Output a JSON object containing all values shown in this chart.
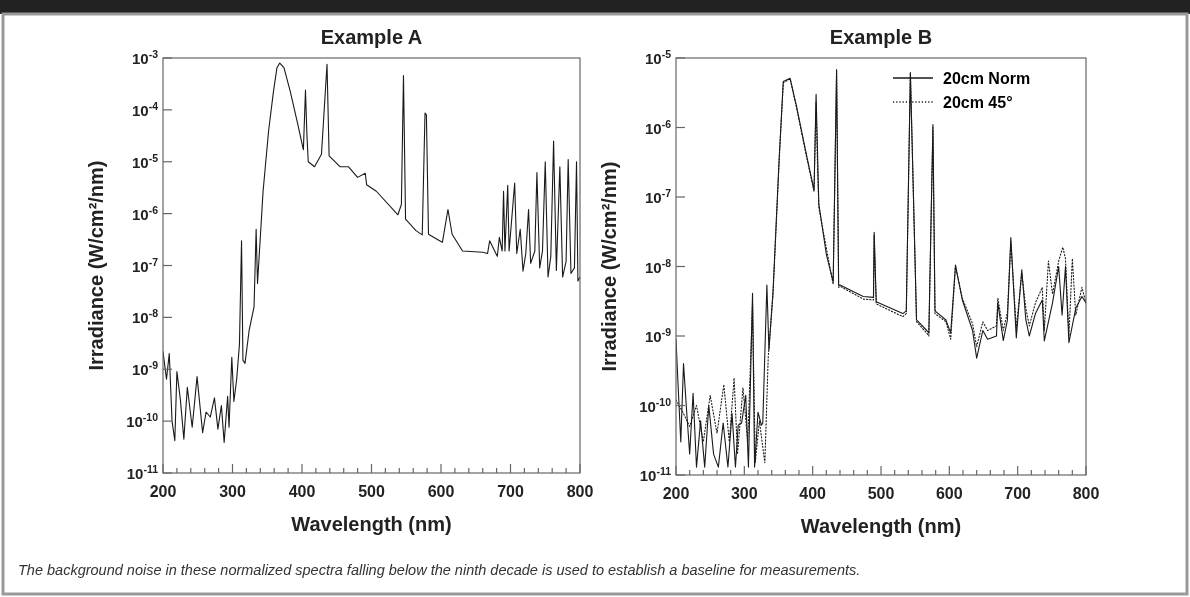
{
  "chart_data": [
    {
      "type": "line",
      "title": "Example A",
      "xlabel": "Wavelength (nm)",
      "ylabel": "Irradiance (W/cm²/nm)",
      "log": "y",
      "xlim": [
        200,
        800
      ],
      "xticks": [
        200,
        {
          "value": 220,
          "label": null
        },
        {
          "value": 240,
          "label": null
        },
        {
          "value": 260,
          "label": null
        },
        {
          "value": 280,
          "label": null
        },
        300,
        {
          "value": 320,
          "label": null
        },
        {
          "value": 340,
          "label": null
        },
        {
          "value": 360,
          "label": null
        },
        {
          "value": 380,
          "label": null
        },
        400,
        {
          "value": 420,
          "label": null
        },
        {
          "value": 440,
          "label": null
        },
        {
          "value": 460,
          "label": null
        },
        {
          "value": 480,
          "label": null
        },
        500,
        {
          "value": 520,
          "label": null
        },
        {
          "value": 540,
          "label": null
        },
        {
          "value": 560,
          "label": null
        },
        {
          "value": 580,
          "label": null
        },
        600,
        {
          "value": 620,
          "label": null
        },
        {
          "value": 640,
          "label": null
        },
        {
          "value": 660,
          "label": null
        },
        {
          "value": 680,
          "label": null
        },
        700,
        {
          "value": 720,
          "label": null
        },
        {
          "value": 740,
          "label": null
        },
        {
          "value": 760,
          "label": null
        },
        {
          "value": 780,
          "label": null
        },
        800
      ],
      "ylim": [
        1e-11,
        0.001
      ],
      "yticks": [
        {
          "value": 1e-11,
          "label": "10$^{-11}$"
        },
        {
          "value": 1e-10,
          "label": "10$^{-10}$"
        },
        {
          "value": 1e-09,
          "label": "10$^{-9}$"
        },
        {
          "value": 1e-08,
          "label": "10$^{-8}$"
        },
        {
          "value": 1e-07,
          "label": "10$^{-7}$"
        },
        {
          "value": 1e-06,
          "label": "10$^{-6}$"
        },
        {
          "value": 1e-05,
          "label": "10$^{-5}$"
        },
        {
          "value": 0.0001,
          "label": "10$^{-4}$"
        },
        {
          "value": 0.001,
          "label": "10$^{-3}$"
        }
      ],
      "line_style": "solid",
      "annotations": [
        "The background noise in these normalized spectra falling below the ninth decade is used to establish a baseline for measurements."
      ],
      "series": [
        {
          "color": "#1a1a1a",
          "x": [
            200,
            205,
            209,
            213,
            217,
            220,
            225,
            230,
            235,
            242,
            249,
            257,
            262,
            268,
            274,
            279,
            284,
            288,
            293,
            295,
            299,
            302,
            306,
            310,
            313,
            315,
            318,
            324,
            331,
            334,
            336,
            344,
            352,
            359,
            364,
            368,
            374,
            383,
            393,
            402,
            405,
            407,
            409,
            418,
            428,
            436,
            439,
            455,
            467,
            480,
            491,
            493,
            507,
            538,
            543,
            546,
            549,
            564,
            573,
            577,
            579,
            582,
            598,
            602,
            610,
            616,
            631,
            660,
            667,
            670,
            681,
            684,
            688,
            690,
            692,
            696,
            698,
            706,
            709,
            714,
            718,
            722,
            726,
            729,
            735,
            738,
            742,
            746,
            750,
            754,
            758,
            762,
            766,
            771,
            775,
            780,
            783,
            787,
            792,
            795,
            797,
            800
          ],
          "values": [
            2.2e-09,
            6.4e-10,
            2e-09,
            1e-10,
            4.2e-11,
            9e-10,
            2.6e-10,
            4.5e-11,
            4.5e-10,
            7.6e-11,
            7.2e-10,
            6e-11,
            1.5e-10,
            1.2e-10,
            2.8e-10,
            7e-11,
            2e-10,
            3.9e-11,
            3e-10,
            7.6e-11,
            1.7e-09,
            2.4e-10,
            6.4e-10,
            3e-09,
            3e-07,
            1.5e-09,
            1.3e-09,
            5.7e-09,
            1.6e-08,
            5e-07,
            4.5e-08,
            2.7e-06,
            4e-05,
            0.00023,
            0.00065,
            0.0008,
            0.00065,
            0.00023,
            6e-05,
            1.7e-05,
            0.00024,
            3.5e-05,
            1e-05,
            8e-06,
            1.4e-05,
            0.00076,
            1.3e-05,
            8e-06,
            8e-06,
            5e-06,
            6e-06,
            3.6e-06,
            2.7e-06,
            9.5e-07,
            1.5e-06,
            0.00046,
            7.8e-07,
            4.7e-07,
            3.9e-07,
            8.7e-05,
            8e-05,
            4e-07,
            3e-07,
            2.8e-07,
            1.2e-06,
            4e-07,
            1.9e-07,
            1.8e-07,
            1.7e-07,
            3e-07,
            1.5e-07,
            3.5e-07,
            1.9e-07,
            2.7e-06,
            1.9e-07,
            3.5e-06,
            1.9e-07,
            3.9e-06,
            1.7e-07,
            5e-07,
            7.8e-08,
            1.7e-07,
            1.2e-06,
            1.1e-07,
            1.9e-07,
            6.2e-06,
            9e-08,
            1.9e-07,
            1e-05,
            6e-08,
            1.5e-07,
            2.5e-05,
            8e-08,
            8e-06,
            6e-08,
            1.2e-07,
            1.1e-05,
            7e-08,
            9e-08,
            1e-05,
            5e-08,
            6e-08
          ]
        }
      ]
    },
    {
      "type": "line",
      "title": "Example B",
      "xlabel": "Wavelength (nm)",
      "ylabel": "Irradiance (W/cm²/nm)",
      "log": "y",
      "legend": "top right",
      "xlim": [
        200,
        800
      ],
      "xticks": [
        200,
        {
          "value": 220,
          "label": null
        },
        {
          "value": 240,
          "label": null
        },
        {
          "value": 260,
          "label": null
        },
        {
          "value": 280,
          "label": null
        },
        300,
        {
          "value": 320,
          "label": null
        },
        {
          "value": 340,
          "label": null
        },
        {
          "value": 360,
          "label": null
        },
        {
          "value": 380,
          "label": null
        },
        400,
        {
          "value": 420,
          "label": null
        },
        {
          "value": 440,
          "label": null
        },
        {
          "value": 460,
          "label": null
        },
        {
          "value": 480,
          "label": null
        },
        500,
        {
          "value": 520,
          "label": null
        },
        {
          "value": 540,
          "label": null
        },
        {
          "value": 560,
          "label": null
        },
        {
          "value": 580,
          "label": null
        },
        600,
        {
          "value": 620,
          "label": null
        },
        {
          "value": 640,
          "label": null
        },
        {
          "value": 660,
          "label": null
        },
        {
          "value": 680,
          "label": null
        },
        700,
        {
          "value": 720,
          "label": null
        },
        {
          "value": 740,
          "label": null
        },
        {
          "value": 760,
          "label": null
        },
        {
          "value": 780,
          "label": null
        },
        800
      ],
      "ylim": [
        1e-11,
        1e-05
      ],
      "yticks": [
        {
          "value": 1e-11,
          "label": "10$^{-11}$"
        },
        {
          "value": 1e-10,
          "label": "10$^{-10}$"
        },
        {
          "value": 1e-09,
          "label": "10$^{-9}$"
        },
        {
          "value": 1e-08,
          "label": "10$^{-8}$"
        },
        {
          "value": 1e-07,
          "label": "10$^{-7}$"
        },
        {
          "value": 1e-06,
          "label": "10$^{-6}$"
        },
        {
          "value": 1e-05,
          "label": "10$^{-5}$"
        }
      ],
      "series": [
        {
          "name": "20cm Norm",
          "color": "#1a1a1a",
          "line_style": "solid",
          "x": [
            200,
            203,
            207,
            211,
            215,
            220,
            225,
            230,
            236,
            242,
            248,
            255,
            262,
            269,
            276,
            282,
            287,
            291,
            296,
            302,
            306,
            312,
            315,
            320,
            325,
            327,
            333,
            336,
            342,
            351,
            357,
            367,
            376,
            391,
            402,
            405,
            407,
            409,
            420,
            430,
            435,
            438,
            440,
            474,
            489,
            490,
            493,
            532,
            537,
            543,
            552,
            567,
            570,
            576,
            579,
            595,
            602,
            609,
            619,
            634,
            640,
            649,
            656,
            669,
            671,
            679,
            685,
            690,
            698,
            706,
            712,
            717,
            726,
            736,
            739,
            751,
            760,
            765,
            770,
            775,
            785,
            794,
            800
          ],
          "values": [
            9e-10,
            2e-10,
            3e-11,
            4e-10,
            1e-10,
            2e-11,
            1.5e-10,
            1.3e-11,
            6e-11,
            1.3e-11,
            1e-10,
            2e-11,
            1.3e-11,
            5.6e-11,
            1.3e-11,
            7.7e-11,
            1.3e-11,
            5.2e-11,
            5.6e-11,
            1.4e-10,
            1.3e-11,
            4.1e-09,
            1.3e-11,
            8e-11,
            5.2e-11,
            5.6e-11,
            5.4e-09,
            6.3e-10,
            4.4e-09,
            3.6e-07,
            4.6e-06,
            5.1e-06,
            2.1e-06,
            4e-07,
            1.26e-07,
            3e-06,
            4.9e-07,
            8e-08,
            1.5e-08,
            6e-09,
            6.8e-06,
            5.4e-09,
            5.4e-09,
            3.7e-09,
            3.6e-09,
            3.1e-08,
            3.1e-09,
            2.1e-09,
            2.3e-09,
            6.2e-06,
            1.7e-09,
            1.2e-09,
            1.1e-09,
            1.1e-06,
            2.3e-09,
            1.7e-09,
            1.1e-09,
            1.05e-08,
            3.3e-09,
            1.2e-09,
            4.8e-10,
            1.2e-09,
            9e-10,
            1e-09,
            3e-09,
            8.6e-10,
            1.7e-09,
            2.6e-08,
            9.4e-10,
            9e-09,
            1.7e-09,
            1e-09,
            2.1e-09,
            3.3e-09,
            8.5e-10,
            3e-09,
            1e-08,
            2e-09,
            1e-08,
            8e-10,
            2.5e-09,
            3.7e-09,
            3e-09
          ]
        },
        {
          "name": "20cm 45°",
          "color": "#1a1a1a",
          "line_style": "dotted",
          "x": [
            200,
            210,
            220,
            230,
            240,
            250,
            260,
            270,
            278,
            285,
            290,
            298,
            305,
            312,
            316,
            322,
            330,
            335,
            342,
            351,
            357,
            367,
            376,
            391,
            402,
            405,
            407,
            409,
            430,
            435,
            438,
            440,
            474,
            489,
            490,
            493,
            532,
            537,
            543,
            552,
            567,
            570,
            576,
            579,
            595,
            602,
            609,
            619,
            634,
            640,
            649,
            656,
            669,
            671,
            679,
            685,
            690,
            698,
            706,
            712,
            717,
            726,
            736,
            739,
            745,
            751,
            760,
            766,
            770,
            775,
            780,
            785,
            794,
            800
          ],
          "values": [
            1.2e-10,
            8e-11,
            5e-11,
            1e-10,
            3e-11,
            1.4e-10,
            4e-11,
            2e-10,
            3e-11,
            2.5e-10,
            2e-11,
            1.8e-10,
            3e-11,
            3e-09,
            1.5e-11,
            6e-11,
            1.5e-11,
            5e-10,
            4e-09,
            3.4e-07,
            4.4e-06,
            5e-06,
            2e-06,
            3.8e-07,
            1.2e-07,
            2.3e-06,
            3e-07,
            7e-08,
            5.5e-09,
            6.5e-06,
            5e-09,
            5.2e-09,
            3.4e-09,
            3.3e-09,
            2.8e-08,
            2.9e-09,
            1.9e-09,
            2.1e-09,
            6e-06,
            1.6e-09,
            1.1e-09,
            1e-09,
            1e-06,
            2.1e-09,
            1.6e-09,
            9e-10,
            1e-08,
            3.5e-09,
            1.5e-09,
            7e-10,
            1.6e-09,
            1.2e-09,
            1.4e-09,
            3.5e-09,
            1.2e-09,
            2.2e-09,
            2.3e-08,
            1.3e-09,
            8e-09,
            2.5e-09,
            1.4e-09,
            3e-09,
            5e-09,
            1.2e-09,
            1.2e-08,
            4e-09,
            1.2e-08,
            1.9e-08,
            1.3e-08,
            1e-09,
            1.3e-08,
            2e-09,
            5e-09,
            3e-09
          ]
        }
      ]
    }
  ]
}
